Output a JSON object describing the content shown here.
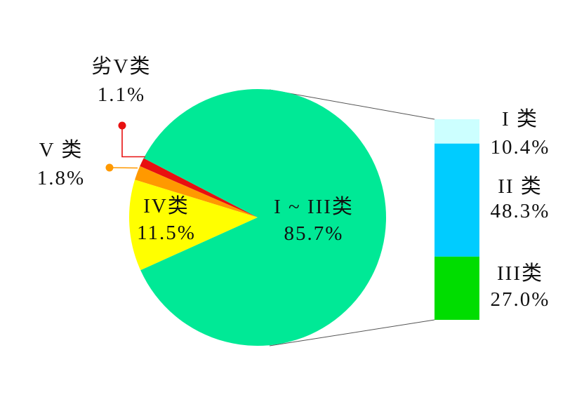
{
  "chart_data": {
    "type": "pie",
    "subtype": "bar-of-pie",
    "title": "",
    "units": "%",
    "slices": [
      {
        "label": "劣V类",
        "pct_text": "1.1%",
        "value": 1.1,
        "color": "#e81010"
      },
      {
        "label": "V 类",
        "pct_text": "1.8%",
        "value": 1.8,
        "color": "#ff9900"
      },
      {
        "label": "IV类",
        "pct_text": "11.5%",
        "value": 11.5,
        "color": "#ffff00"
      },
      {
        "label": "I ~ III类",
        "pct_text": "85.7%",
        "value": 85.7,
        "color": "#00e996"
      }
    ],
    "start_angle_deg": 152.5,
    "direction": "ccw",
    "bar_breakdown": {
      "of_slice": "I ~ III类",
      "segments": [
        {
          "label": "I 类",
          "pct_text": "10.4%",
          "value": 10.4,
          "color": "#ccffff"
        },
        {
          "label": "II 类",
          "pct_text": "48.3%",
          "value": 48.3,
          "color": "#00ccff"
        },
        {
          "label": "III类",
          "pct_text": "27.0%",
          "value": 27.0,
          "color": "#00dd00"
        }
      ]
    },
    "connector_color": "#555555",
    "background": "#ffffff"
  }
}
